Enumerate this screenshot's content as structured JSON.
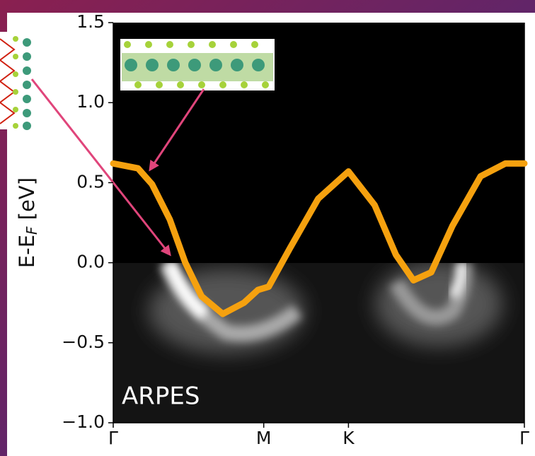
{
  "chart_data": {
    "type": "line",
    "ylabel": [
      "E-E",
      "F",
      " [eV]"
    ],
    "annotation": "ARPES",
    "x": [
      0,
      0.164,
      0.258,
      0.376,
      0.479,
      0.587,
      0.728,
      0.869,
      0.962,
      1.033,
      1.174,
      1.362,
      1.563,
      1.737,
      1.878,
      1.995,
      2.113,
      2.254,
      2.441,
      2.606,
      2.732
    ],
    "values": [
      0.62,
      0.59,
      0.49,
      0.27,
      0.0,
      -0.21,
      -0.32,
      -0.25,
      -0.17,
      -0.15,
      0.09,
      0.4,
      0.57,
      0.36,
      0.05,
      -0.11,
      -0.06,
      0.23,
      0.54,
      0.62,
      0.62
    ],
    "color": "#f5a10f",
    "xlim": [
      0,
      2.732
    ],
    "xticks": [
      {
        "value": 0,
        "label": "Γ"
      },
      {
        "value": 1,
        "label": "M"
      },
      {
        "value": 1.563,
        "label": "K"
      },
      {
        "value": 2.732,
        "label": "Γ"
      }
    ],
    "ylim": [
      -1.0,
      1.5
    ],
    "yticks": [
      {
        "value": 1.5,
        "label": "1.5"
      },
      {
        "value": 1.0,
        "label": "1.0"
      },
      {
        "value": 0.5,
        "label": "0.5"
      },
      {
        "value": 0.0,
        "label": "0.0"
      },
      {
        "value": -0.5,
        "label": "−0.5"
      },
      {
        "value": -1.0,
        "label": "−1.0"
      }
    ]
  }
}
